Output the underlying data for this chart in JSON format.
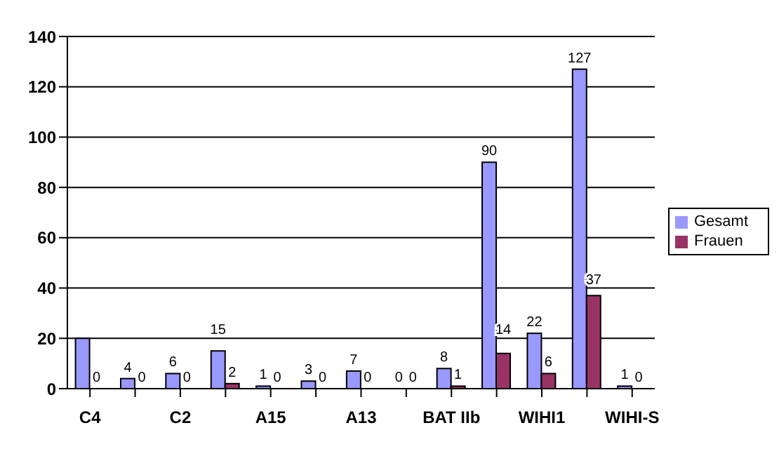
{
  "chart_data": {
    "type": "bar",
    "categories": [
      "C4",
      null,
      "C2",
      null,
      "A15",
      null,
      "A13",
      null,
      "BAT IIb",
      null,
      "WIHI1",
      null,
      "WIHI-S"
    ],
    "series": [
      {
        "name": "Gesamt",
        "color": "#9999ff",
        "values": [
          20,
          4,
          6,
          15,
          1,
          3,
          7,
          0,
          8,
          90,
          22,
          127,
          1
        ],
        "value_labels": [
          null,
          "4",
          "6",
          "15",
          "1",
          "3",
          "7",
          "0",
          "8",
          "90",
          "22",
          "127",
          "1"
        ]
      },
      {
        "name": "Frauen",
        "color": "#993366",
        "values": [
          0,
          0,
          0,
          2,
          0,
          0,
          0,
          0,
          1,
          14,
          6,
          37,
          0
        ],
        "value_labels": [
          "0",
          "0",
          "0",
          "2",
          "0",
          "0",
          "0",
          "0",
          "1",
          "14",
          "6",
          "37",
          "0"
        ]
      }
    ],
    "ylim": [
      0,
      140
    ],
    "yticks": [
      0,
      20,
      40,
      60,
      80,
      100,
      120,
      140
    ],
    "grid": "y",
    "legend": "right"
  }
}
